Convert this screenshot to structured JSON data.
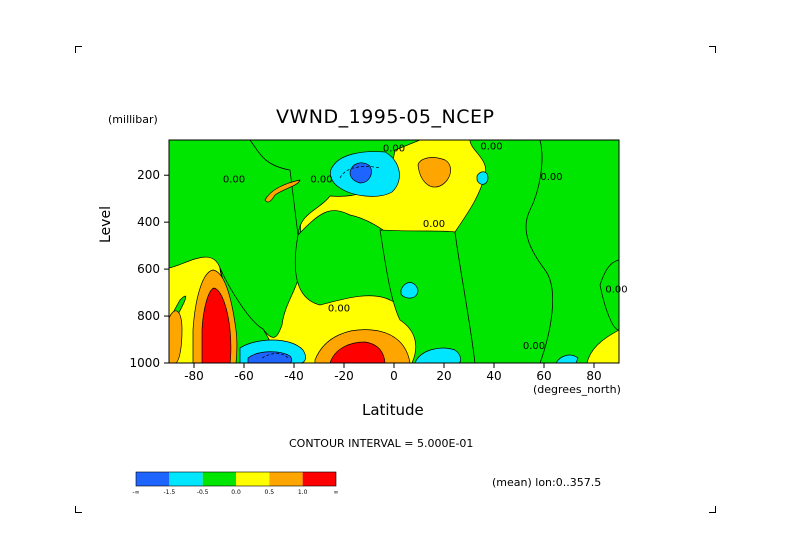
{
  "page": {
    "title": "VWND_1995-05_NCEP",
    "yunit": "(millibar)",
    "ylabel": "Level",
    "xlabel": "Latitude",
    "xunit": "(degrees_north)",
    "contour_note": "CONTOUR INTERVAL = 5.000E-01",
    "mean_note": "(mean) lon:0..357.5"
  },
  "chart_data": {
    "type": "heatmap",
    "title": "VWND_1995-05_NCEP",
    "xlabel": "Latitude",
    "ylabel": "Level",
    "xlim": [
      -90,
      90
    ],
    "ylim": [
      1000,
      50
    ],
    "x_ticks": [
      -80,
      -60,
      -40,
      -20,
      0,
      20,
      40,
      60,
      80
    ],
    "y_ticks": [
      200,
      400,
      600,
      800,
      1000
    ],
    "contour_interval": 0.5,
    "contour_labels": [
      {
        "x": -64,
        "y": 230,
        "text": "0.00"
      },
      {
        "x": -29,
        "y": 230,
        "text": "0.00"
      },
      {
        "x": 0,
        "y": 100,
        "text": "0.00"
      },
      {
        "x": 39,
        "y": 90,
        "text": "0.00"
      },
      {
        "x": 63,
        "y": 220,
        "text": "0.00"
      },
      {
        "x": 16,
        "y": 420,
        "text": "0.00"
      },
      {
        "x": -22,
        "y": 780,
        "text": "0.00"
      },
      {
        "x": 56,
        "y": 940,
        "text": "0.00"
      },
      {
        "x": 89,
        "y": 700,
        "text": "0.00"
      }
    ],
    "levels": [
      {
        "range": "< -1.5",
        "color": "#1e64ff"
      },
      {
        "range": "-1.5 to -0.5",
        "color": "#00e6ff"
      },
      {
        "range": "-0.5 to 0.0",
        "color": "#00e600"
      },
      {
        "range": "0.0 to 0.5",
        "color": "#ffff00"
      },
      {
        "range": "0.5 to 1.0",
        "color": "#ffa500"
      },
      {
        "range": "> 1.0",
        "color": "#ff0000"
      }
    ],
    "colorbar_labels": [
      "-∞",
      "-1.5",
      "-0.5",
      "0.0",
      "0.5",
      "1.0",
      "∞"
    ],
    "features": [
      {
        "name": "negative core",
        "lat": -10,
        "level": 170,
        "class": "< -1.5"
      },
      {
        "name": "positive core",
        "lat": 15,
        "level": 160,
        "class": "0.5 to 1.0"
      },
      {
        "name": "strong positive",
        "lat": -75,
        "level": 850,
        "class": "> 1.0"
      },
      {
        "name": "strong positive",
        "lat": -15,
        "level": 950,
        "class": "> 1.0"
      },
      {
        "name": "strong negative",
        "lat": -56,
        "level": 970,
        "class": "< -1.5"
      },
      {
        "name": "negative",
        "lat": 20,
        "level": 970,
        "class": "-1.5 to -0.5"
      }
    ]
  }
}
